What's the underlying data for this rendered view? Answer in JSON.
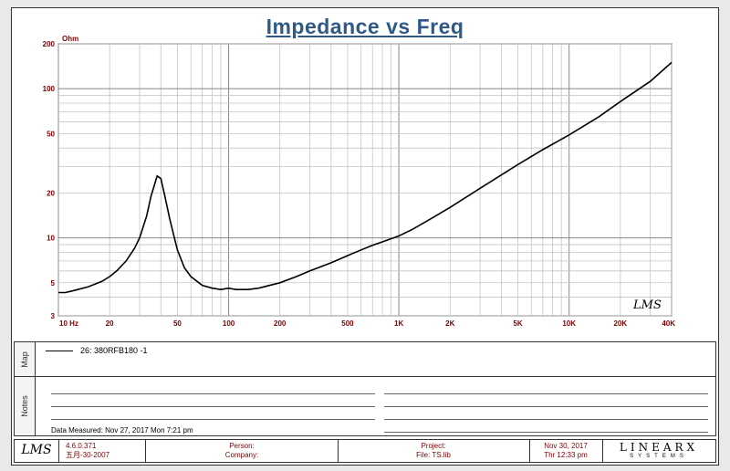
{
  "chart_data": {
    "type": "line",
    "title": "Impedance vs Freq",
    "ylabel": "Ohm",
    "x_scale": "log",
    "y_scale": "log",
    "xlim": [
      10,
      40000
    ],
    "ylim": [
      3,
      200
    ],
    "x_ticks": [
      {
        "v": 10,
        "label": "10  Hz"
      },
      {
        "v": 20,
        "label": "20"
      },
      {
        "v": 50,
        "label": "50"
      },
      {
        "v": 100,
        "label": "100"
      },
      {
        "v": 200,
        "label": "200"
      },
      {
        "v": 500,
        "label": "500"
      },
      {
        "v": 1000,
        "label": "1K"
      },
      {
        "v": 2000,
        "label": "2K"
      },
      {
        "v": 5000,
        "label": "5K"
      },
      {
        "v": 10000,
        "label": "10K"
      },
      {
        "v": 20000,
        "label": "20K"
      },
      {
        "v": 40000,
        "label": "40K"
      }
    ],
    "y_ticks": [
      {
        "v": 3,
        "label": "3"
      },
      {
        "v": 5,
        "label": "5"
      },
      {
        "v": 10,
        "label": "10"
      },
      {
        "v": 20,
        "label": "20"
      },
      {
        "v": 50,
        "label": "50"
      },
      {
        "v": 100,
        "label": "100"
      },
      {
        "v": 200,
        "label": "200"
      }
    ],
    "grid": true,
    "legend_position": "bottom panel",
    "series": [
      {
        "name": "26: 380RFB180 -1",
        "color": "#000000",
        "x": [
          10,
          11,
          12,
          13,
          15,
          18,
          20,
          22,
          25,
          28,
          30,
          33,
          35,
          38,
          40,
          42,
          45,
          48,
          50,
          55,
          60,
          70,
          80,
          90,
          100,
          110,
          130,
          150,
          200,
          250,
          300,
          400,
          500,
          600,
          700,
          800,
          1000,
          1200,
          1500,
          2000,
          3000,
          5000,
          7000,
          10000,
          15000,
          20000,
          30000,
          40000
        ],
        "y": [
          4.3,
          4.3,
          4.4,
          4.5,
          4.7,
          5.1,
          5.5,
          6.0,
          7.0,
          8.5,
          10.0,
          14.0,
          19.0,
          26.0,
          25.0,
          19.5,
          13.5,
          10.0,
          8.3,
          6.3,
          5.5,
          4.8,
          4.6,
          4.5,
          4.6,
          4.5,
          4.5,
          4.6,
          5.0,
          5.5,
          6.0,
          6.8,
          7.6,
          8.3,
          8.9,
          9.4,
          10.3,
          11.4,
          13.2,
          16.0,
          21.5,
          31.0,
          39.0,
          49.0,
          65.0,
          82.0,
          112.0,
          150.0
        ]
      }
    ]
  },
  "legend": {
    "entry": "26: 380RFB180 -1"
  },
  "panels": {
    "map_label": "Map",
    "notes_label": "Notes"
  },
  "notes": {
    "measured": "Data Measured: Nov 27, 2017  Mon  7:21 pm"
  },
  "watermark": "LMS",
  "footer": {
    "logo": "LMS",
    "version": "4.6.0.371",
    "version_date": "五月-30-2007",
    "person": "Person:",
    "company": "Company:",
    "project": "Project:",
    "file": "File: TS.lib",
    "date": "Nov 30, 2017",
    "time": "Thr 12:33 pm",
    "brand": "LINEARX",
    "brand_sub": "SYSTEMS"
  }
}
